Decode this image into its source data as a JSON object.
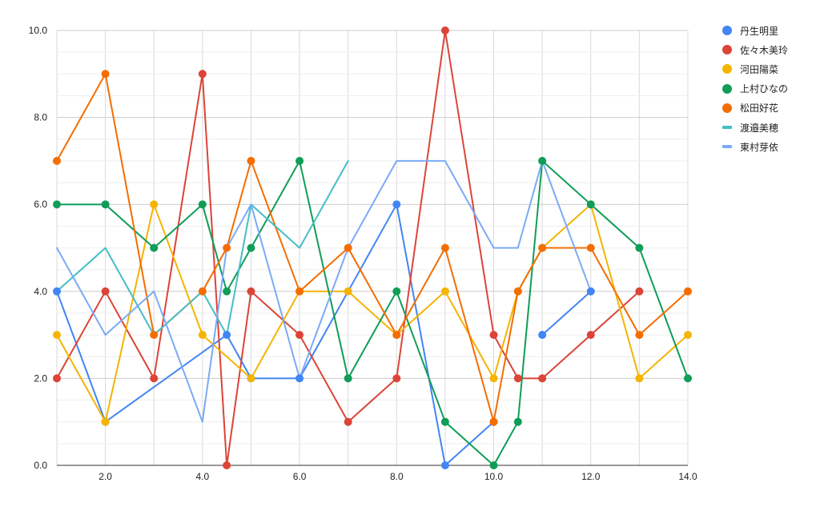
{
  "chart_data": {
    "type": "line",
    "xlim": [
      1,
      14
    ],
    "ylim": [
      0,
      10
    ],
    "x_ticks": [
      "2.0",
      "4.0",
      "6.0",
      "8.0",
      "10.0",
      "12.0",
      "14.0"
    ],
    "y_ticks": [
      "0.0",
      "2.0",
      "4.0",
      "6.0",
      "8.0",
      "10.0"
    ],
    "grid": true,
    "legend_position": "right",
    "series": [
      {
        "name": "丹生明里",
        "color": "#4285F4",
        "markers": true,
        "points": [
          [
            1,
            4
          ],
          [
            2,
            1
          ],
          [
            4.5,
            3
          ],
          [
            5,
            2
          ],
          [
            6,
            2
          ],
          [
            8,
            6
          ],
          [
            9,
            0
          ],
          [
            10,
            1
          ],
          null,
          [
            11,
            3
          ],
          [
            12,
            4
          ]
        ]
      },
      {
        "name": "佐々木美玲",
        "color": "#DB4437",
        "markers": true,
        "points": [
          [
            1,
            2
          ],
          [
            2,
            4
          ],
          [
            3,
            2
          ],
          [
            4,
            9
          ],
          [
            4.5,
            0
          ],
          [
            5,
            4
          ],
          [
            6,
            3
          ],
          [
            7,
            1
          ],
          [
            8,
            2
          ],
          [
            9,
            10
          ],
          [
            10,
            3
          ],
          [
            10.5,
            2
          ],
          [
            11,
            2
          ],
          [
            12,
            3
          ],
          [
            13,
            4
          ]
        ]
      },
      {
        "name": "河田陽菜",
        "color": "#F4B400",
        "markers": true,
        "points": [
          [
            1,
            3
          ],
          [
            2,
            1
          ],
          [
            3,
            6
          ],
          [
            4,
            3
          ],
          [
            5,
            2
          ],
          [
            6,
            4
          ],
          [
            7,
            4
          ],
          [
            8,
            3
          ],
          [
            9,
            4
          ],
          [
            10,
            2
          ],
          [
            10.5,
            4
          ],
          [
            11,
            5
          ],
          [
            12,
            6
          ],
          [
            13,
            2
          ],
          [
            14,
            3
          ]
        ]
      },
      {
        "name": "上村ひなの",
        "color": "#0F9D58",
        "markers": true,
        "points": [
          [
            1,
            6
          ],
          [
            2,
            6
          ],
          [
            3,
            5
          ],
          [
            4,
            6
          ],
          [
            4.5,
            4
          ],
          [
            5,
            5
          ],
          [
            6,
            7
          ],
          [
            7,
            2
          ],
          [
            8,
            4
          ],
          [
            9,
            1
          ],
          [
            10,
            0
          ],
          [
            10.5,
            1
          ],
          [
            11,
            7
          ],
          [
            12,
            6
          ],
          [
            13,
            5
          ],
          [
            14,
            2
          ]
        ]
      },
      {
        "name": "松田好花",
        "color": "#F46D00",
        "markers": true,
        "points": [
          [
            1,
            7
          ],
          [
            2,
            9
          ],
          [
            3,
            3
          ],
          [
            4,
            4
          ],
          [
            4.5,
            5
          ],
          [
            5,
            7
          ],
          [
            6,
            4
          ],
          [
            7,
            5
          ],
          [
            8,
            3
          ],
          [
            9,
            5
          ],
          [
            10,
            1
          ],
          [
            10.5,
            4
          ],
          [
            11,
            5
          ],
          [
            12,
            5
          ],
          [
            13,
            3
          ],
          [
            14,
            4
          ]
        ]
      },
      {
        "name": "渡邉美穂",
        "color": "#46BDC6",
        "markers": false,
        "points": [
          [
            1,
            4
          ],
          [
            2,
            5
          ],
          [
            3,
            3
          ],
          [
            4,
            4
          ],
          [
            4.5,
            3
          ],
          [
            5,
            6
          ],
          [
            6,
            5
          ],
          [
            7,
            7
          ]
        ]
      },
      {
        "name": "東村芽依",
        "color": "#7BAAF7",
        "markers": false,
        "points": [
          [
            1,
            5
          ],
          [
            2,
            3
          ],
          [
            3,
            4
          ],
          [
            4,
            1
          ],
          [
            4.5,
            5
          ],
          [
            5,
            6
          ],
          [
            6,
            2
          ],
          [
            7,
            5
          ],
          [
            8,
            7
          ],
          [
            9,
            7
          ],
          [
            10,
            5
          ],
          [
            10.5,
            5
          ],
          [
            11,
            7
          ],
          [
            12,
            4
          ]
        ]
      }
    ]
  }
}
